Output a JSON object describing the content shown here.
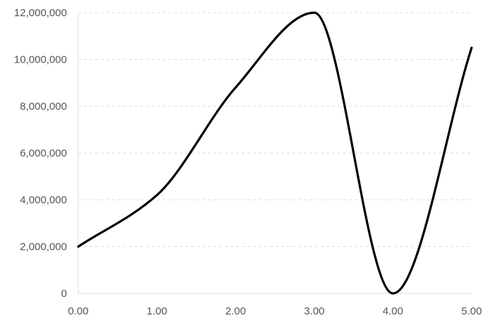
{
  "chart_data": {
    "type": "line",
    "title": "",
    "xlabel": "",
    "ylabel": "",
    "x": [
      0,
      1,
      2,
      3,
      4,
      5
    ],
    "series": [
      {
        "values": [
          2000000,
          4200000,
          8800000,
          12000000,
          0,
          10500000
        ],
        "color": "#000000"
      }
    ],
    "xlim": [
      0,
      5
    ],
    "ylim": [
      0,
      12000000
    ],
    "x_ticks": [
      0,
      1,
      2,
      3,
      4,
      5
    ],
    "x_tick_labels": [
      "0.00",
      "1.00",
      "2.00",
      "3.00",
      "4.00",
      "5.00"
    ],
    "y_ticks": [
      0,
      2000000,
      4000000,
      6000000,
      8000000,
      10000000,
      12000000
    ],
    "y_tick_labels": [
      "0",
      "2,000,000",
      "4,000,000",
      "6,000,000",
      "8,000,000",
      "10,000,000",
      "12,000,000"
    ],
    "grid": true,
    "grid_style": "dashed",
    "grid_color": "#dddddd",
    "line_style": "smooth",
    "legend": "none"
  }
}
